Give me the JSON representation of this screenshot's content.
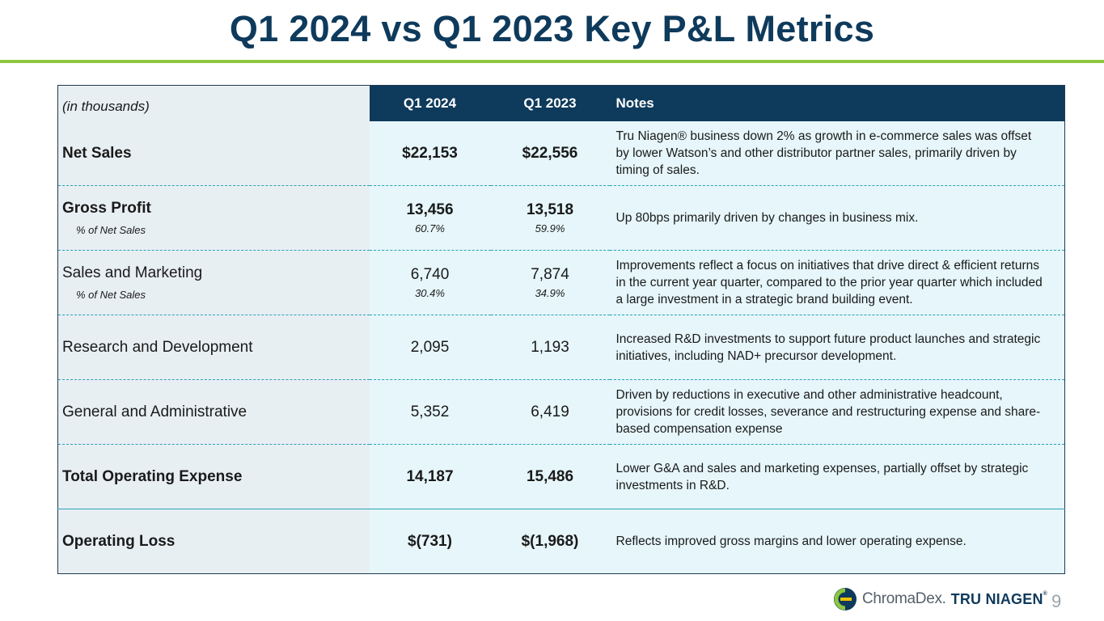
{
  "slide": {
    "title": "Q1 2024 vs Q1 2023 Key P&L Metrics",
    "page_number": "9"
  },
  "table": {
    "header": {
      "label": "(in thousands)",
      "q1_2024": "Q1 2024",
      "q1_2023": "Q1 2023",
      "notes": "Notes"
    },
    "rows": [
      {
        "label": "Net Sales",
        "sub_label": "",
        "q1_2024": "$22,153",
        "q1_2024_pct": "",
        "q1_2023": "$22,556",
        "q1_2023_pct": "",
        "notes": "Tru Niagen® business down 2% as growth in e-commerce sales was offset by lower Watson’s and other distributor partner sales, primarily driven by timing of sales."
      },
      {
        "label": "Gross Profit",
        "sub_label": "% of Net Sales",
        "q1_2024": "13,456",
        "q1_2024_pct": "60.7%",
        "q1_2023": "13,518",
        "q1_2023_pct": "59.9%",
        "notes": "Up 80bps primarily driven by changes in business mix."
      },
      {
        "label": "Sales and Marketing",
        "sub_label": "% of Net Sales",
        "q1_2024": "6,740",
        "q1_2024_pct": "30.4%",
        "q1_2023": "7,874",
        "q1_2023_pct": "34.9%",
        "notes": "Improvements reflect a focus on initiatives that drive direct & efficient returns in the current year quarter, compared to the prior year quarter which included a large investment in a strategic brand building event."
      },
      {
        "label": "Research and Development",
        "sub_label": "",
        "q1_2024": "2,095",
        "q1_2024_pct": "",
        "q1_2023": "1,193",
        "q1_2023_pct": "",
        "notes": "Increased R&D investments to support future product launches and strategic initiatives, including NAD+ precursor development."
      },
      {
        "label": "General and Administrative",
        "sub_label": "",
        "q1_2024": "5,352",
        "q1_2024_pct": "",
        "q1_2023": "6,419",
        "q1_2023_pct": "",
        "notes": "Driven by reductions in executive and other administrative headcount, provisions for credit losses, severance and restructuring expense and share-based compensation expense"
      },
      {
        "label": "Total Operating Expense",
        "sub_label": "",
        "q1_2024": "14,187",
        "q1_2024_pct": "",
        "q1_2023": "15,486",
        "q1_2023_pct": "",
        "notes": "Lower G&A and sales and marketing expenses, partially offset by strategic investments in R&D."
      },
      {
        "label": "Operating Loss",
        "sub_label": "",
        "q1_2024": "$(731)",
        "q1_2024_pct": "",
        "q1_2023": "$(1,968)",
        "q1_2023_pct": "",
        "notes": "Reflects improved gross margins and lower operating expense."
      }
    ]
  },
  "logo": {
    "brand1": "ChromaDex.",
    "brand2": "TRU NIAGEN",
    "tm": "®"
  },
  "colors": {
    "title": "#0e3a5c",
    "accent_rule": "#8dc63f",
    "header_bg": "#0e3a5c",
    "row_divider": "#2aa1b8"
  }
}
